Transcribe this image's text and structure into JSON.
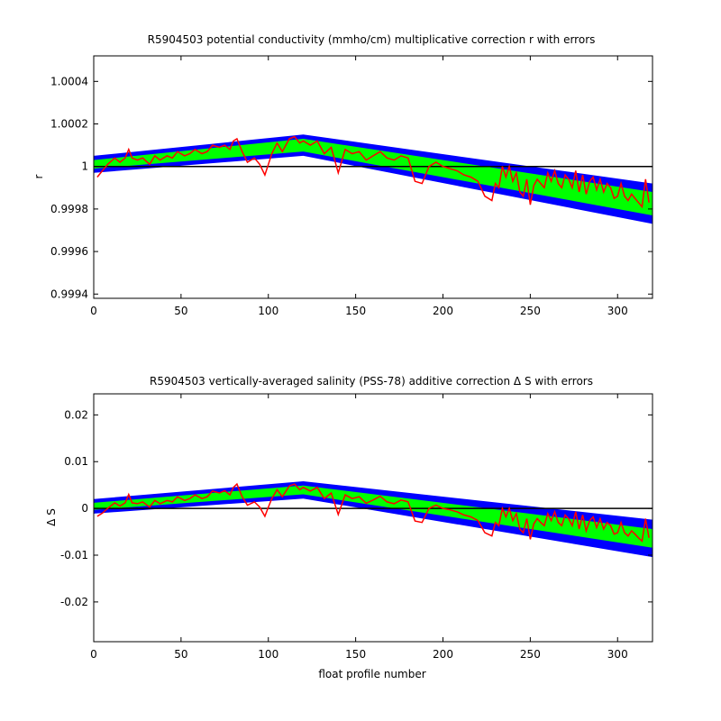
{
  "chart_data": [
    {
      "type": "line",
      "title": "R5904503 potential conductivity (mmho/cm) multiplicative correction r with errors",
      "xlabel": "",
      "ylabel": "r",
      "xlim": [
        0,
        320
      ],
      "ylim": [
        0.99938,
        1.00052
      ],
      "xticks": [
        "0",
        "50",
        "100",
        "150",
        "200",
        "250",
        "300"
      ],
      "yticks": [
        "0.9994",
        "0.9996",
        "0.9998",
        "1",
        "1.0002",
        "1.0004"
      ],
      "xtick_values": [
        0,
        50,
        100,
        150,
        200,
        250,
        300
      ],
      "ytick_values": [
        0.9994,
        0.9996,
        0.9998,
        1.0,
        1.0002,
        1.0004
      ],
      "reference_line": 1.0,
      "colors": {
        "outer_band": "#0000ff",
        "inner_band": "#00ff00",
        "series": "#ff0000",
        "reference": "#000000"
      },
      "band_x": [
        0,
        120,
        320
      ],
      "outer_band_upper": [
        1.00005,
        1.00015,
        0.99992
      ],
      "outer_band_lower": [
        0.99997,
        1.00005,
        0.99973
      ],
      "inner_band_upper": [
        1.00003,
        1.00013,
        0.99988
      ],
      "inner_band_lower": [
        0.99999,
        1.00007,
        0.99977
      ],
      "series": [
        {
          "x": [
            2,
            5,
            8,
            12,
            15,
            18,
            20,
            22,
            25,
            28,
            32,
            35,
            38,
            42,
            45,
            48,
            52,
            55,
            58,
            62,
            65,
            68,
            72,
            75,
            78,
            80,
            82,
            85,
            88,
            92,
            95,
            98,
            100,
            102,
            105,
            108,
            112,
            115,
            118,
            120,
            124,
            128,
            132,
            136,
            140,
            144,
            148,
            152,
            156,
            160,
            164,
            168,
            172,
            176,
            180,
            184,
            188,
            192,
            196,
            200,
            204,
            208,
            212,
            216,
            220,
            224,
            228,
            230,
            232,
            234,
            236,
            238,
            240,
            242,
            244,
            246,
            248,
            250,
            252,
            254,
            256,
            258,
            260,
            262,
            264,
            266,
            268,
            270,
            272,
            274,
            276,
            278,
            280,
            282,
            284,
            286,
            288,
            290,
            292,
            294,
            296,
            298,
            300,
            302,
            304,
            306,
            308,
            310,
            312,
            314,
            316,
            318
          ],
          "values": [
            0.99995,
            0.99998,
            1.00001,
            1.00004,
            1.00002,
            1.00004,
            1.00008,
            1.00004,
            1.00003,
            1.00004,
            1.00001,
            1.00005,
            1.00003,
            1.00005,
            1.00004,
            1.00007,
            1.00005,
            1.00006,
            1.00008,
            1.00006,
            1.00007,
            1.0001,
            1.00009,
            1.0001,
            1.00008,
            1.00012,
            1.00013,
            1.00007,
            1.00002,
            1.00004,
            1.00001,
            0.99996,
            1.00001,
            1.00006,
            1.00011,
            1.00007,
            1.00013,
            1.00014,
            1.00011,
            1.00012,
            1.0001,
            1.00012,
            1.00006,
            1.00009,
            0.99997,
            1.00008,
            1.00006,
            1.00007,
            1.00003,
            1.00005,
            1.00007,
            1.00004,
            1.00003,
            1.00005,
            1.00004,
            0.99993,
            0.99992,
            1.0,
            1.00002,
            1.0,
            0.99999,
            0.99998,
            0.99996,
            0.99995,
            0.99993,
            0.99986,
            0.99984,
            0.99992,
            0.9999,
            1.0,
            0.99995,
            1.0,
            0.99993,
            0.99997,
            0.99988,
            0.99986,
            0.99994,
            0.99982,
            0.99991,
            0.99994,
            0.99992,
            0.9999,
            0.99997,
            0.99993,
            0.99998,
            0.99992,
            0.9999,
            0.99996,
            0.99994,
            0.9999,
            0.99998,
            0.99988,
            0.99996,
            0.99987,
            0.99993,
            0.99995,
            0.99989,
            0.99994,
            0.99988,
            0.99992,
            0.9999,
            0.99985,
            0.99986,
            0.99992,
            0.99986,
            0.99984,
            0.99987,
            0.99985,
            0.99983,
            0.99981,
            0.99994,
            0.99983
          ]
        }
      ]
    },
    {
      "type": "line",
      "title": "R5904503 vertically-averaged salinity (PSS-78) additive correction Δ S with errors",
      "xlabel": "float profile number",
      "ylabel": "Δ S",
      "xlim": [
        0,
        320
      ],
      "ylim": [
        -0.0285,
        0.0245
      ],
      "xticks": [
        "0",
        "50",
        "100",
        "150",
        "200",
        "250",
        "300"
      ],
      "yticks": [
        "-0.02",
        "-0.01",
        "0",
        "0.01",
        "0.02"
      ],
      "xtick_values": [
        0,
        50,
        100,
        150,
        200,
        250,
        300
      ],
      "ytick_values": [
        -0.02,
        -0.01,
        0.0,
        0.01,
        0.02
      ],
      "reference_line": 0.0,
      "colors": {
        "outer_band": "#0000ff",
        "inner_band": "#00ff00",
        "series": "#ff0000",
        "reference": "#000000"
      },
      "band_x": [
        0,
        120,
        320
      ],
      "outer_band_upper": [
        0.002,
        0.0058,
        -0.0024
      ],
      "outer_band_lower": [
        -0.0011,
        0.0021,
        -0.0104
      ],
      "inner_band_upper": [
        0.0012,
        0.0049,
        -0.0044
      ],
      "inner_band_lower": [
        -0.0003,
        0.003,
        -0.0084
      ],
      "series": [
        {
          "x": [
            2,
            5,
            8,
            12,
            15,
            18,
            20,
            22,
            25,
            28,
            32,
            35,
            38,
            42,
            45,
            48,
            52,
            55,
            58,
            62,
            65,
            68,
            72,
            75,
            78,
            80,
            82,
            85,
            88,
            92,
            95,
            98,
            100,
            102,
            105,
            108,
            112,
            115,
            118,
            120,
            124,
            128,
            132,
            136,
            140,
            144,
            148,
            152,
            156,
            160,
            164,
            168,
            172,
            176,
            180,
            184,
            188,
            192,
            196,
            200,
            204,
            208,
            212,
            216,
            220,
            224,
            228,
            230,
            232,
            234,
            236,
            238,
            240,
            242,
            244,
            246,
            248,
            250,
            252,
            254,
            256,
            258,
            260,
            262,
            264,
            266,
            268,
            270,
            272,
            274,
            276,
            278,
            280,
            282,
            284,
            286,
            288,
            290,
            292,
            294,
            296,
            298,
            300,
            302,
            304,
            306,
            308,
            310,
            312,
            314,
            316,
            318
          ],
          "values": [
            -0.0017,
            -0.001,
            0.0,
            0.0012,
            0.0005,
            0.0012,
            0.003,
            0.0012,
            0.001,
            0.0014,
            0.0003,
            0.0017,
            0.001,
            0.0017,
            0.0014,
            0.0025,
            0.0017,
            0.0021,
            0.0029,
            0.0021,
            0.0025,
            0.0037,
            0.0033,
            0.0038,
            0.0029,
            0.0045,
            0.0052,
            0.0025,
            0.0007,
            0.0014,
            0.0003,
            -0.0017,
            0.0003,
            0.0021,
            0.004,
            0.0025,
            0.0048,
            0.0052,
            0.004,
            0.0045,
            0.0037,
            0.0045,
            0.0021,
            0.0033,
            -0.0013,
            0.0029,
            0.0021,
            0.0025,
            0.0011,
            0.0018,
            0.0026,
            0.0014,
            0.001,
            0.0018,
            0.0014,
            -0.0027,
            -0.003,
            0.0,
            0.0007,
            0.0,
            -0.0003,
            -0.0007,
            -0.0014,
            -0.0018,
            -0.0026,
            -0.0052,
            -0.0059,
            -0.003,
            -0.0037,
            0.0,
            -0.0018,
            0.0,
            -0.0026,
            -0.0011,
            -0.0044,
            -0.0052,
            -0.0022,
            -0.0066,
            -0.0033,
            -0.0022,
            -0.003,
            -0.0037,
            -0.0011,
            -0.0026,
            -0.0007,
            -0.003,
            -0.0037,
            -0.0014,
            -0.0022,
            -0.0037,
            -0.0007,
            -0.0044,
            -0.0014,
            -0.0048,
            -0.0026,
            -0.0018,
            -0.0041,
            -0.0022,
            -0.0044,
            -0.003,
            -0.0037,
            -0.0055,
            -0.0052,
            -0.003,
            -0.0052,
            -0.0059,
            -0.0048,
            -0.0055,
            -0.0063,
            -0.007,
            -0.0022,
            -0.0063
          ]
        }
      ]
    }
  ]
}
